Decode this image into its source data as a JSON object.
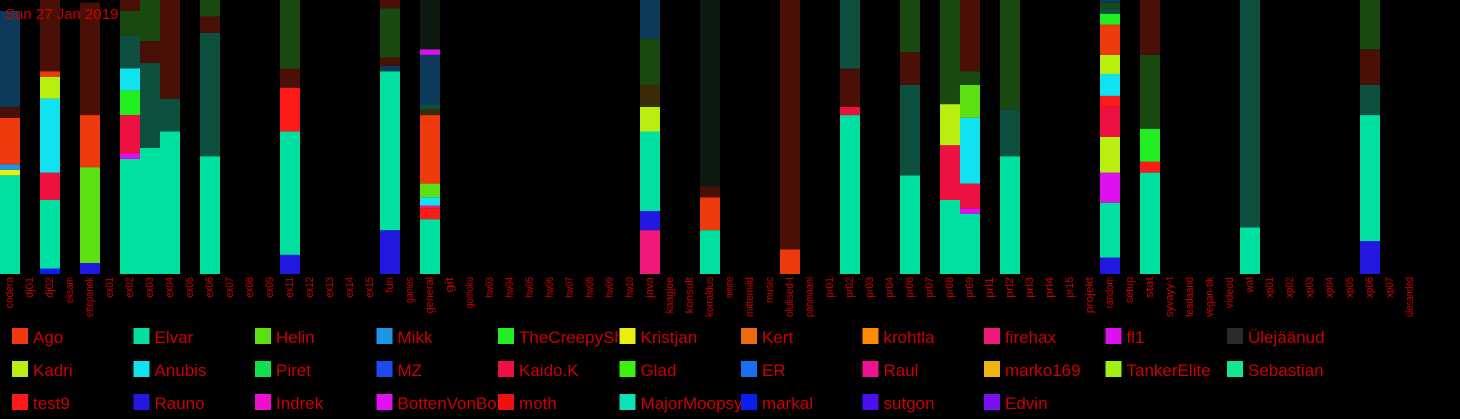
{
  "date_label": "Sun 27 Jan 2019",
  "colors": {
    "text": "#cc0000",
    "background": "#000000"
  },
  "chart_data": {
    "type": "bar",
    "stacked": true,
    "title": "",
    "xlabel": "",
    "ylabel": "",
    "ylim": [
      0,
      100
    ],
    "grid": false,
    "legend_position": "bottom",
    "categories": [
      "codera",
      "dj01",
      "dj02",
      "eksam",
      "ettepanek",
      "ex01",
      "ex02",
      "ex03",
      "ex04",
      "ex05",
      "ex06",
      "ex07",
      "ex08",
      "ex09",
      "ex11",
      "ex12",
      "ex13",
      "ex14",
      "ex15",
      "fun",
      "games",
      "general",
      "git",
      "gomoku",
      "hw03",
      "hw04",
      "hw05",
      "hw06",
      "hw07",
      "hw08",
      "hw09",
      "hw10",
      "java",
      "kaagjoe",
      "konsult",
      "korraldus",
      "meme",
      "mittemiid",
      "music",
      "olulised-t",
      "pahmaani",
      "pr01",
      "pr02",
      "pr03",
      "pr04",
      "pr06",
      "pr07",
      "pr08",
      "pr09",
      "prl1",
      "prl2",
      "prl3",
      "prl4",
      "pr15",
      "projekt",
      "random",
      "setup",
      "stat",
      "syvayy-t",
      "teadaand",
      "vegan-tik",
      "videod",
      "wat",
      "xp01",
      "xp02",
      "xp03",
      "xp04",
      "xp05",
      "xp06",
      "xp07",
      "ülesanded"
    ],
    "series": [
      {
        "name": "Ago",
        "color": "#ee3a0c"
      },
      {
        "name": "Elvar",
        "color": "#00e1a0"
      },
      {
        "name": "Helin",
        "color": "#5ce014"
      },
      {
        "name": "Mikk",
        "color": "#1e96e8"
      },
      {
        "name": "TheCreepySh",
        "color": "#22ee22"
      },
      {
        "name": "Kristjan",
        "color": "#e8ee10"
      },
      {
        "name": "Kert",
        "color": "#ee6a10"
      },
      {
        "name": "krohtla",
        "color": "#ff8a00"
      },
      {
        "name": "firehax",
        "color": "#f01878"
      },
      {
        "name": "fl1",
        "color": "#dd11ee"
      },
      {
        "name": "Ülejäänud",
        "color": "#2a2a2a"
      },
      {
        "name": "Kadri",
        "color": "#b8ee10"
      },
      {
        "name": "Anubis",
        "color": "#10e2f0"
      },
      {
        "name": "Piret",
        "color": "#10e050"
      },
      {
        "name": "MZ",
        "color": "#1c4cf0"
      },
      {
        "name": "Kaido.K",
        "color": "#ee1040"
      },
      {
        "name": "Glad",
        "color": "#3cf010"
      },
      {
        "name": "ER",
        "color": "#1a6ef0"
      },
      {
        "name": "Raul",
        "color": "#f01090"
      },
      {
        "name": "marko169",
        "color": "#f0b410"
      },
      {
        "name": "TankerElite",
        "color": "#a0f010"
      },
      {
        "name": "Sebastian",
        "color": "#10e890"
      },
      {
        "name": "test9",
        "color": "#ff1a1a"
      },
      {
        "name": "Rauno",
        "color": "#2218e0"
      },
      {
        "name": "Indrek",
        "color": "#ee10c8"
      },
      {
        "name": "BottenVonBot",
        "color": "#e010f0"
      },
      {
        "name": "moth",
        "color": "#f01010"
      },
      {
        "name": "MajorMoopsy",
        "color": "#10e0b8"
      },
      {
        "name": "markal",
        "color": "#0a1ef0"
      },
      {
        "name": "sutgon",
        "color": "#4a10f0"
      },
      {
        "name": "Edvin",
        "color": "#7a10f0"
      }
    ],
    "other_colors": [
      "#0d3a5a",
      "#0e5040",
      "#1a4a10",
      "#4a1008",
      "#0d1a10",
      "#3a2a08"
    ],
    "bars": {
      "codera": [
        [
          "#00e0a0",
          36
        ],
        [
          "#e8ee10",
          2
        ],
        [
          "#1e96e8",
          2
        ],
        [
          "#ee3a0c",
          17
        ],
        [
          "#4a1008",
          4
        ],
        [
          "#0d3a5a",
          35
        ]
      ],
      "dj01": [],
      "dj02": [
        [
          "#0a1ef0",
          2
        ],
        [
          "#00e0a0",
          25
        ],
        [
          "#ee1040",
          10
        ],
        [
          "#10e2f0",
          27
        ],
        [
          "#b8ee10",
          8
        ],
        [
          "#ee3a0c",
          2
        ],
        [
          "#4a1008",
          26
        ]
      ],
      "eksam": [],
      "ettepanek": [
        [
          "#2218e0",
          4
        ],
        [
          "#5ce014",
          35
        ],
        [
          "#ee3a0c",
          19
        ],
        [
          "#4a1008",
          41
        ]
      ],
      "ex01": [],
      "ex02": [
        [
          "#00e0a0",
          42
        ],
        [
          "#dd11ee",
          2
        ],
        [
          "#ee1040",
          14
        ],
        [
          "#22ee22",
          9
        ],
        [
          "#10e2f0",
          8
        ],
        [
          "#0e5040",
          12
        ],
        [
          "#1a4a10",
          9
        ],
        [
          "#4a1008",
          4
        ]
      ],
      "ex03": [
        [
          "#00e0a0",
          46
        ],
        [
          "#0e5040",
          31
        ],
        [
          "#4a1008",
          8
        ],
        [
          "#1a4a10",
          15
        ]
      ],
      "ex04": [
        [
          "#00e0a0",
          52
        ],
        [
          "#0e5040",
          12
        ],
        [
          "#4a1008",
          36
        ]
      ],
      "ex05": [],
      "ex06": [
        [
          "#00e0a0",
          43
        ],
        [
          "#0e5040",
          45
        ],
        [
          "#4a1008",
          6
        ],
        [
          "#1a4a10",
          6
        ]
      ],
      "ex07": [],
      "ex08": [],
      "ex09": [],
      "ex11": [
        [
          "#2218e0",
          7
        ],
        [
          "#00e0a0",
          45
        ],
        [
          "#ff1a1a",
          16
        ],
        [
          "#4a1008",
          7
        ],
        [
          "#1a4a10",
          25
        ]
      ],
      "ex12": [],
      "ex13": [],
      "ex14": [],
      "ex15": [],
      "fun": [
        [
          "#2218e0",
          16
        ],
        [
          "#00e0a0",
          58
        ],
        [
          "#0d3a5a",
          2
        ],
        [
          "#4a1008",
          3
        ],
        [
          "#1a4a10",
          18
        ],
        [
          "#4a1008",
          5
        ],
        [
          "#0e5040",
          8
        ]
      ],
      "games": [],
      "general": [
        [
          "#00e0a0",
          20
        ],
        [
          "#ff1a1a",
          4
        ],
        [
          "#f01878",
          1
        ],
        [
          "#10e2f0",
          3
        ],
        [
          "#5ce014",
          5
        ],
        [
          "#ee3a0c",
          25
        ],
        [
          "#3a2a08",
          2
        ],
        [
          "#0e5040",
          2
        ],
        [
          "#0d3a5a",
          18
        ],
        [
          "#dd11ee",
          2
        ],
        [
          "#0d1a10",
          23
        ]
      ],
      "git": [],
      "gomoku": [],
      "hw03": [],
      "hw04": [],
      "hw05": [],
      "hw06": [],
      "hw07": [],
      "hw08": [],
      "hw09": [],
      "hw10": [],
      "java": [
        [
          "#f01878",
          16
        ],
        [
          "#2218e0",
          7
        ],
        [
          "#00e0a0",
          29
        ],
        [
          "#b8ee10",
          9
        ],
        [
          "#3a2a08",
          8
        ],
        [
          "#1a4a10",
          17
        ],
        [
          "#0d3a5a",
          26
        ]
      ],
      "kaagjoe": [],
      "konsult": [],
      "korraldus": [
        [
          "#00e0a0",
          16
        ],
        [
          "#ee3a0c",
          12
        ],
        [
          "#4a1008",
          4
        ],
        [
          "#0d1a10",
          68
        ]
      ],
      "meme": [],
      "mittemiid": [],
      "music": [],
      "olulised-t": [
        [
          "#ee3a0c",
          9
        ],
        [
          "#4a1008",
          91
        ]
      ],
      "pahmaani": [],
      "pr01": [],
      "pr02": [
        [
          "#00e0a0",
          58
        ],
        [
          "#ee1040",
          3
        ],
        [
          "#4a1008",
          14
        ],
        [
          "#0e5040",
          30
        ],
        [
          "#3a2a08",
          2
        ]
      ],
      "pr03": [],
      "pr04": [],
      "pr06": [
        [
          "#00e0a0",
          36
        ],
        [
          "#0e5040",
          33
        ],
        [
          "#4a1008",
          12
        ],
        [
          "#1a4a10",
          19
        ]
      ],
      "pr07": [],
      "pr08": [
        [
          "#00e0a0",
          27
        ],
        [
          "#ee1040",
          20
        ],
        [
          "#b8ee10",
          15
        ],
        [
          "#1a4a10",
          38
        ]
      ],
      "pr09": [
        [
          "#00e0a0",
          22
        ],
        [
          "#dd11ee",
          2
        ],
        [
          "#ee1040",
          9
        ],
        [
          "#10e2f0",
          24
        ],
        [
          "#5ce014",
          12
        ],
        [
          "#1a4a10",
          5
        ],
        [
          "#4a1008",
          26
        ]
      ],
      "prl1": [],
      "prl2": [
        [
          "#00e0a0",
          43
        ],
        [
          "#0e5040",
          17
        ],
        [
          "#1a4a10",
          40
        ]
      ],
      "prl3": [],
      "prl4": [],
      "pr15": [],
      "projekt": [],
      "random": [
        [
          "#2218e0",
          6
        ],
        [
          "#00e0a0",
          20
        ],
        [
          "#dd11ee",
          11
        ],
        [
          "#b8ee10",
          13
        ],
        [
          "#ee1040",
          11
        ],
        [
          "#ff1a1a",
          4
        ],
        [
          "#10e2f0",
          8
        ],
        [
          "#b8ee10",
          7
        ],
        [
          "#ee3a0c",
          11
        ],
        [
          "#22ee22",
          4
        ],
        [
          "#0e5040",
          2
        ],
        [
          "#1a4a10",
          2
        ],
        [
          "#0d3a5a",
          10
        ]
      ],
      "setup": [],
      "stat": [
        [
          "#00e0a0",
          37
        ],
        [
          "#ff1a1a",
          4
        ],
        [
          "#22ee22",
          12
        ],
        [
          "#1a4a10",
          27
        ],
        [
          "#4a1008",
          21
        ],
        [
          "#0d3a5a",
          9
        ]
      ],
      "syvayy-t": [],
      "teadaand": [],
      "vegan-tik": [],
      "videod": [],
      "wat": [
        [
          "#00e0a0",
          17
        ],
        [
          "#0e5040",
          83
        ]
      ],
      "xp01": [],
      "xp02": [],
      "xp03": [],
      "xp04": [],
      "xp05": [],
      "xp06": [
        [
          "#2218e0",
          12
        ],
        [
          "#00e0a0",
          46
        ],
        [
          "#0e5040",
          11
        ],
        [
          "#4a1008",
          13
        ],
        [
          "#1a4a10",
          23
        ],
        [
          "#4a1008",
          7
        ]
      ],
      "xp07": [],
      "ülesanded": []
    }
  }
}
